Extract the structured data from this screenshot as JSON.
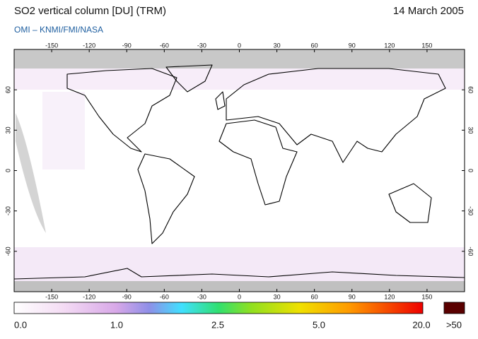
{
  "header": {
    "title": "SO2 vertical column [DU] (TRM)",
    "date": "14 March 2005",
    "source": "OMI  –  KNMI/FMI/NASA"
  },
  "map": {
    "lon_ticks": [
      -150,
      -120,
      -90,
      -60,
      -30,
      0,
      30,
      60,
      90,
      120,
      150
    ],
    "lat_ticks": [
      60,
      30,
      0,
      -30,
      -60
    ]
  },
  "colorbar": {
    "labels": [
      "0.0",
      "1.0",
      "2.5",
      "5.0",
      "20.0"
    ],
    "overflow_label": ">50"
  }
}
